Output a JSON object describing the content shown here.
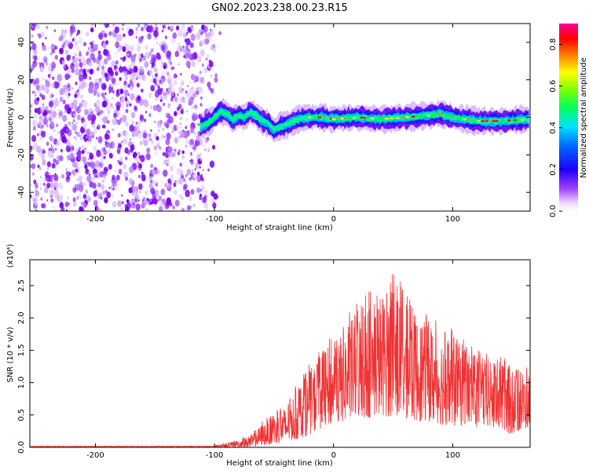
{
  "title": "GN02.2023.238.00.23.R15",
  "spectrogram": {
    "xlabel": "Height of straight line (km)",
    "ylabel": "Frequency (Hz)",
    "xlim": [
      -255,
      165
    ],
    "ylim": [
      -50,
      50
    ],
    "xticks": [
      -200,
      -100,
      0,
      100
    ],
    "xtick_labels": [
      "-200",
      "-100",
      "0",
      "100"
    ],
    "yticks": [
      -40,
      -20,
      0,
      20,
      40
    ],
    "ytick_labels": [
      "-40",
      "-20",
      "0",
      "20",
      "40"
    ],
    "noise_region_x": [
      -255,
      -95
    ],
    "signal_line": {
      "x": [
        -112,
        -105,
        -100,
        -95,
        -90,
        -85,
        -80,
        -75,
        -70,
        -65,
        -60,
        -55,
        -50,
        -45,
        -40,
        -30,
        -20,
        -10,
        0,
        20,
        40,
        60,
        80,
        90,
        100,
        120,
        140,
        165
      ],
      "y": [
        -5,
        -3,
        0,
        3,
        2,
        -1,
        1,
        0,
        3,
        1,
        -2,
        -3,
        -7,
        -5,
        -4,
        -1,
        0,
        0,
        -1,
        0,
        -1,
        0,
        1,
        2,
        0,
        -2,
        -2,
        -1
      ]
    },
    "colorbar": {
      "label": "Normalized spectral amplitude",
      "ticks": [
        0.0,
        0.2,
        0.4,
        0.6,
        0.8
      ],
      "tick_labels": [
        "0.0",
        "0.2",
        "0.4",
        "0.6",
        "0.8"
      ],
      "range": [
        0,
        0.9
      ]
    },
    "colormap": [
      "#ffffff",
      "#e8d6ff",
      "#8a00ff",
      "#0000ff",
      "#00ffff",
      "#00ff00",
      "#ffff00",
      "#ff8000",
      "#ff0000",
      "#ff00aa"
    ]
  },
  "chart_data": [
    {
      "type": "heatmap",
      "title": "GN02.2023.238.00.23.R15",
      "xlabel": "Height of straight line (km)",
      "ylabel": "Frequency (Hz)",
      "xlim": [
        -255,
        165
      ],
      "ylim": [
        -50,
        50
      ],
      "colorbar_label": "Normalized spectral amplitude"
    },
    {
      "type": "line",
      "xlabel": "Height of straight line (km)",
      "ylabel": "SNR (10 * v/v)",
      "y_scale_label": "(x10⁴)",
      "y_multiplier": 10000,
      "xlim": [
        -255,
        165
      ],
      "ylim": [
        0,
        2.9
      ],
      "xticks": [
        -200,
        -100,
        0,
        100
      ],
      "xtick_labels": [
        "-200",
        "-100",
        "0",
        "100"
      ],
      "yticks": [
        0,
        0.5,
        1.0,
        1.5,
        2.0,
        2.5
      ],
      "ytick_labels": [
        "0.0",
        "0.5",
        "1.0",
        "1.5",
        "2.0",
        "2.5"
      ],
      "color": "#ee3333",
      "envelope": {
        "x": [
          -255,
          -100,
          -90,
          -80,
          -70,
          -60,
          -50,
          -40,
          -30,
          -20,
          -10,
          0,
          10,
          20,
          30,
          40,
          50,
          60,
          70,
          80,
          90,
          100,
          110,
          120,
          130,
          140,
          150,
          165
        ],
        "upper": [
          0.02,
          0.03,
          0.07,
          0.12,
          0.2,
          0.4,
          0.55,
          0.7,
          1.0,
          1.3,
          1.6,
          1.75,
          2.0,
          2.3,
          2.45,
          2.6,
          2.75,
          2.45,
          2.2,
          2.05,
          1.95,
          1.85,
          1.7,
          1.55,
          1.45,
          1.4,
          1.35,
          1.25
        ],
        "lower": [
          0.0,
          0.0,
          0.0,
          0.0,
          0.0,
          0.03,
          0.05,
          0.08,
          0.12,
          0.2,
          0.3,
          0.35,
          0.4,
          0.45,
          0.45,
          0.5,
          0.45,
          0.45,
          0.4,
          0.4,
          0.35,
          0.3,
          0.35,
          0.3,
          0.3,
          0.25,
          0.2,
          0.3
        ]
      }
    }
  ]
}
